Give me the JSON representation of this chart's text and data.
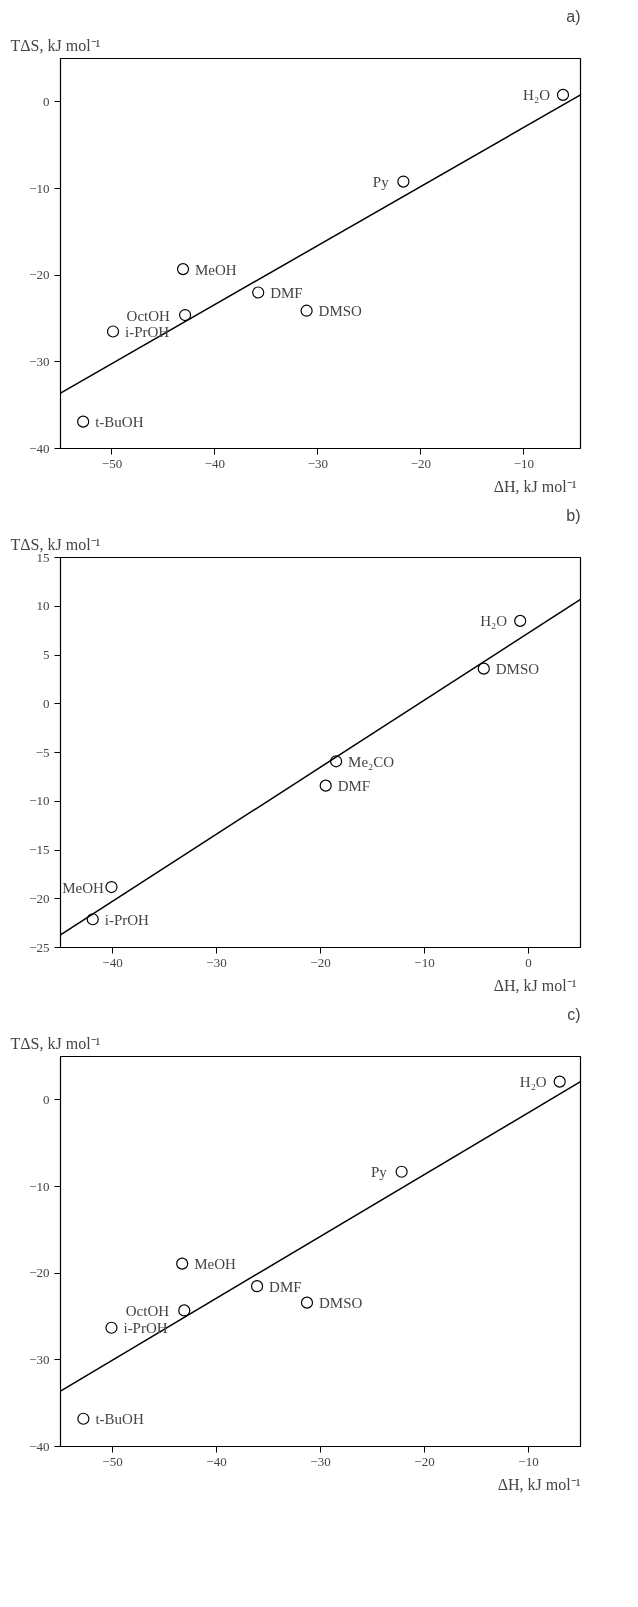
{
  "chart_data": [
    {
      "type": "scatter",
      "title": "a)",
      "xlabel": "ΔH,  kJ mol⁻¹",
      "ylabel": "TΔS,  kJ mol⁻¹",
      "grid": false,
      "xlim": [
        -55,
        -4.5
      ],
      "ylim": [
        -40,
        5
      ],
      "xticks": [
        -50,
        -40,
        -30,
        -20,
        -10
      ],
      "yticks": [
        -40,
        -30,
        -20,
        -10,
        0
      ],
      "series": [
        {
          "marker": "circle",
          "color": "#000000",
          "x": [
            -6.2,
            -21.7,
            -43.1,
            -35.8,
            -31.1,
            -42.9,
            -49.9,
            -52.8
          ],
          "values": [
            0.8,
            -9.2,
            -19.3,
            -22.0,
            -24.1,
            -24.6,
            -26.5,
            -36.9
          ]
        },
        {
          "type": "line",
          "color": "#000000",
          "x": [
            -55,
            -4.5
          ],
          "values": [
            -33.6,
            0.8
          ]
        }
      ],
      "annotations": [
        {
          "text": "H₂O",
          "x": -6.2,
          "y": 0.8
        },
        {
          "text": "Py",
          "x": -21.7,
          "y": -9.2
        },
        {
          "text": "MeOH",
          "x": -43.1,
          "y": -19.3
        },
        {
          "text": "DMF",
          "x": -35.8,
          "y": -22.0
        },
        {
          "text": "DMSO",
          "x": -31.1,
          "y": -24.1
        },
        {
          "text": "OctOH",
          "x": -42.9,
          "y": -24.6
        },
        {
          "text": "i-PrOH",
          "x": -49.9,
          "y": -26.5
        },
        {
          "text": "t-BuOH",
          "x": -52.8,
          "y": -36.9
        }
      ]
    },
    {
      "type": "scatter",
      "title": "b)",
      "xlabel": "ΔH,  kJ mol⁻¹",
      "ylabel": "TΔS,  kJ mol⁻¹",
      "grid": false,
      "xlim": [
        -45,
        5
      ],
      "ylim": [
        -25,
        15
      ],
      "xticks": [
        -40,
        -30,
        -20,
        -10,
        0
      ],
      "yticks": [
        -25,
        -20,
        -15,
        -10,
        -5,
        0,
        5,
        10,
        15
      ],
      "series": [
        {
          "marker": "circle",
          "color": "#000000",
          "x": [
            -0.8,
            -4.3,
            -18.5,
            -19.5,
            -40.1,
            -41.9
          ],
          "values": [
            8.5,
            3.6,
            -5.9,
            -8.4,
            -18.8,
            -22.1
          ]
        },
        {
          "type": "line",
          "color": "#000000",
          "x": [
            -45,
            5
          ],
          "values": [
            -23.7,
            10.7
          ]
        }
      ],
      "annotations": [
        {
          "text": "H₂O",
          "x": -0.8,
          "y": 8.5
        },
        {
          "text": "DMSO",
          "x": -4.3,
          "y": 3.6
        },
        {
          "text": "Me₂CO",
          "x": -18.5,
          "y": -5.9
        },
        {
          "text": "DMF",
          "x": -19.5,
          "y": -8.4
        },
        {
          "text": "MeOH",
          "x": -40.1,
          "y": -18.8
        },
        {
          "text": "i-PrOH",
          "x": -41.9,
          "y": -22.1
        }
      ]
    },
    {
      "type": "scatter",
      "title": "c)",
      "xlabel": "ΔH, kJ mol⁻¹",
      "ylabel": "TΔS,  kJ mol⁻¹",
      "grid": false,
      "xlim": [
        -55,
        -5
      ],
      "ylim": [
        -40,
        5
      ],
      "xticks": [
        -50,
        -40,
        -30,
        -20,
        -10
      ],
      "yticks": [
        -40,
        -30,
        -20,
        -10,
        0
      ],
      "series": [
        {
          "marker": "circle",
          "color": "#000000",
          "x": [
            -7.0,
            -22.2,
            -43.3,
            -36.1,
            -31.3,
            -43.1,
            -50.1,
            -52.8
          ],
          "values": [
            2.1,
            -8.3,
            -18.9,
            -21.5,
            -23.4,
            -24.3,
            -26.3,
            -36.8
          ]
        },
        {
          "type": "line",
          "color": "#000000",
          "x": [
            -55,
            -5
          ],
          "values": [
            -33.6,
            2.1
          ]
        }
      ],
      "annotations": [
        {
          "text": "H₂O",
          "x": -7.0,
          "y": 2.1
        },
        {
          "text": "Py",
          "x": -22.2,
          "y": -8.3
        },
        {
          "text": "MeOH",
          "x": -43.3,
          "y": -18.9
        },
        {
          "text": "DMF",
          "x": -36.1,
          "y": -21.5
        },
        {
          "text": "DMSO",
          "x": -31.3,
          "y": -23.4
        },
        {
          "text": "OctOH",
          "x": -43.1,
          "y": -24.3
        },
        {
          "text": "i-PrOH",
          "x": -50.1,
          "y": -26.3
        },
        {
          "text": "t-BuOH",
          "x": -52.8,
          "y": -36.8
        }
      ]
    }
  ]
}
